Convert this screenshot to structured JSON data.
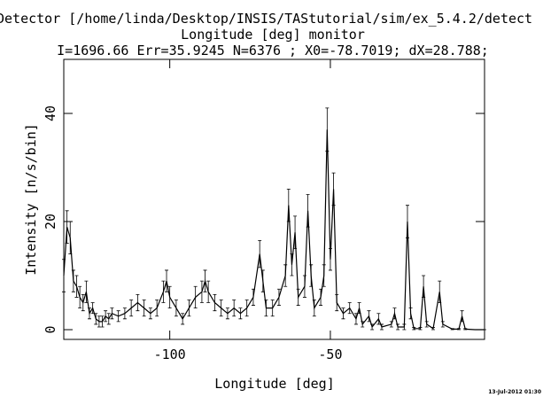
{
  "chart_data": {
    "type": "line",
    "title": "Detector [/home/linda/Desktop/INSIS/TAStutorial/sim/ex_5.4.2/detect",
    "subtitle": "Longitude [deg] monitor",
    "stats": "I=1696.66 Err=35.9245 N=6376 ; X0=-78.7019; dX=28.788;",
    "x_label": "Longitude [deg]",
    "y_label": "Intensity [n/s/bin]",
    "timestamp": "13-Jul-2012 01:30",
    "color": "#000000",
    "xlim": [
      -133,
      -2
    ],
    "ylim": [
      -1.8,
      50
    ],
    "xticks": [
      -100,
      -50
    ],
    "yticks": [
      0,
      20,
      40
    ],
    "x": [
      -133,
      -132,
      -131,
      -130,
      -129,
      -128,
      -127,
      -126,
      -125,
      -124,
      -123,
      -122,
      -121,
      -120,
      -119,
      -118,
      -116,
      -114,
      -112,
      -110,
      -108,
      -106,
      -104,
      -102,
      -101,
      -100,
      -98,
      -96,
      -94,
      -92,
      -90,
      -89,
      -88,
      -86,
      -84,
      -82,
      -80,
      -78,
      -76,
      -74,
      -72,
      -71,
      -70,
      -68,
      -66,
      -64,
      -63,
      -62,
      -61,
      -60,
      -58,
      -57,
      -56,
      -55,
      -53,
      -52,
      -51,
      -50,
      -49,
      -48,
      -46,
      -44,
      -42,
      -41,
      -40,
      -38,
      -37,
      -35,
      -34,
      -31,
      -30,
      -29,
      -27,
      -26,
      -25,
      -24,
      -22,
      -21,
      -20,
      -18,
      -16,
      -15,
      -12,
      -10,
      -9,
      -8,
      -5,
      -2
    ],
    "values": [
      10,
      19,
      17,
      9,
      8,
      6,
      5,
      7,
      3,
      4,
      2,
      1.5,
      1.5,
      2.5,
      2,
      3,
      2.5,
      3,
      4,
      5,
      4,
      3,
      4,
      7,
      9,
      6,
      4,
      2,
      4,
      6,
      7,
      9,
      7,
      5,
      4,
      3,
      4,
      3,
      4,
      6,
      14,
      9,
      4,
      4,
      6,
      10,
      23,
      12,
      18,
      6,
      8,
      22,
      10,
      4,
      6,
      10,
      37,
      13,
      26,
      5,
      3,
      4,
      2,
      4,
      1,
      2.5,
      0.5,
      2,
      0.5,
      1,
      3,
      0.5,
      0.5,
      20,
      3,
      0.2,
      0.2,
      8,
      1,
      0.2,
      7,
      1,
      0.1,
      0.1,
      2.5,
      0.1,
      0,
      0
    ],
    "errors": [
      3,
      3,
      3,
      2,
      2,
      2,
      1.5,
      2,
      1,
      1,
      1,
      1,
      1,
      1,
      1,
      1,
      1,
      1,
      1.5,
      1.5,
      1.5,
      1,
      1.5,
      2,
      2,
      2,
      1.5,
      1,
      1.5,
      2,
      2,
      2,
      2,
      1.5,
      1.5,
      1,
      1.5,
      1,
      1.5,
      1.5,
      2.5,
      2,
      1.5,
      1.5,
      1.5,
      2,
      3,
      2,
      3,
      1.5,
      2,
      3,
      2,
      1.5,
      1.5,
      2,
      4,
      2,
      3,
      1.5,
      1,
      1,
      1,
      1,
      0.5,
      1,
      0.5,
      1,
      0.5,
      0.5,
      1,
      0.5,
      0.5,
      3,
      1,
      0.2,
      0.2,
      2,
      0.5,
      0.2,
      2,
      0.5,
      0.1,
      0.1,
      1,
      0.1,
      0,
      0
    ]
  }
}
